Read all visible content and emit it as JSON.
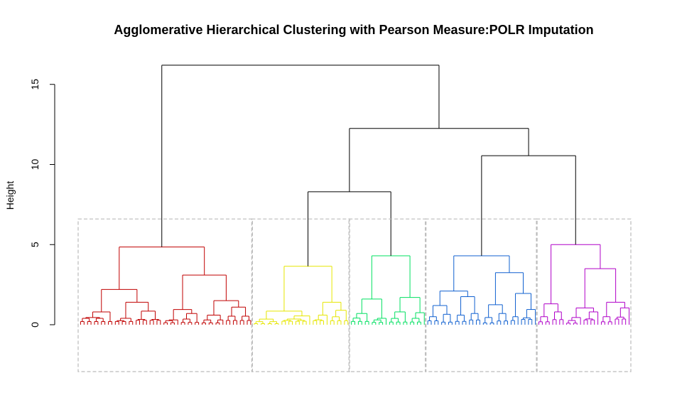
{
  "chart_data": {
    "type": "dendrogram",
    "title": "Agglomerative Hierarchical Clustering with Pearson Measure:POLR Imputation",
    "ylabel": "Height",
    "xlabel": "",
    "ylim": [
      0,
      16.2
    ],
    "y_ticks": [
      0,
      5,
      10,
      15
    ],
    "y_tick_labels": [
      "0",
      "5",
      "10",
      "15"
    ],
    "cut_height": 6.6,
    "grid": false,
    "clusters": [
      {
        "color": "#c00000",
        "tree": {
          "h": 4.85,
          "c": [
            {
              "h": 2.2,
              "c": [
                {
                  "h": 0.8,
                  "leaves": 10
                },
                {
                  "h": 1.4,
                  "c": [
                    {
                      "h": 0.4,
                      "leaves": 6
                    },
                    {
                      "h": 0.85,
                      "leaves": 8
                    }
                  ]
                }
              ]
            },
            {
              "h": 3.1,
              "c": [
                {
                  "h": 0.95,
                  "c": [
                    {
                      "h": 0.3,
                      "leaves": 5
                    },
                    {
                      "h": 0.7,
                      "leaves": 6
                    }
                  ]
                },
                {
                  "h": 1.5,
                  "c": [
                    {
                      "h": 0.6,
                      "leaves": 7
                    },
                    {
                      "h": 1.1,
                      "leaves": 8
                    }
                  ]
                }
              ]
            }
          ]
        }
      },
      {
        "color": "#e6e600",
        "tree": {
          "h": 3.65,
          "c": [
            {
              "h": 0.85,
              "c": [
                {
                  "h": 0.35,
                  "leaves": 8
                },
                {
                  "h": 0.55,
                  "leaves": 9
                }
              ]
            },
            {
              "h": 1.4,
              "c": [
                {
                  "h": 0.6,
                  "leaves": 5
                },
                {
                  "h": 0.9,
                  "leaves": 6
                }
              ]
            }
          ]
        }
      },
      {
        "color": "#00e060",
        "tree": {
          "h": 4.3,
          "c": [
            {
              "h": 1.6,
              "c": [
                {
                  "h": 0.7,
                  "leaves": 6
                },
                {
                  "h": 0.4,
                  "leaves": 5
                }
              ]
            },
            {
              "h": 1.7,
              "c": [
                {
                  "h": 0.8,
                  "leaves": 6
                },
                {
                  "h": 0.75,
                  "leaves": 5
                }
              ]
            }
          ]
        }
      },
      {
        "color": "#1060d0",
        "tree": {
          "h": 4.3,
          "c": [
            {
              "h": 2.1,
              "c": [
                {
                  "h": 1.2,
                  "c": [
                    {
                      "h": 0.5,
                      "leaves": 4
                    },
                    {
                      "h": 0.65,
                      "leaves": 4
                    }
                  ]
                },
                {
                  "h": 1.75,
                  "c": [
                    {
                      "h": 0.6,
                      "leaves": 4
                    },
                    {
                      "h": 0.7,
                      "leaves": 4
                    }
                  ]
                }
              ]
            },
            {
              "h": 3.25,
              "c": [
                {
                  "h": 1.25,
                  "c": [
                    {
                      "h": 0.45,
                      "leaves": 4
                    },
                    {
                      "h": 0.7,
                      "leaves": 4
                    }
                  ]
                },
                {
                  "h": 1.95,
                  "c": [
                    {
                      "h": 0.5,
                      "leaves": 3
                    },
                    {
                      "h": 0.95,
                      "leaves": 5
                    }
                  ]
                }
              ]
            }
          ]
        }
      },
      {
        "color": "#b000c8",
        "tree": {
          "h": 5.0,
          "c": [
            {
              "h": 1.3,
              "c": [
                {
                  "h": 0.5,
                  "leaves": 4
                },
                {
                  "h": 0.8,
                  "leaves": 4
                }
              ]
            },
            {
              "h": 3.5,
              "c": [
                {
                  "h": 1.05,
                  "c": [
                    {
                      "h": 0.45,
                      "leaves": 5
                    },
                    {
                      "h": 0.8,
                      "leaves": 5
                    }
                  ]
                },
                {
                  "h": 1.4,
                  "c": [
                    {
                      "h": 0.5,
                      "leaves": 4
                    },
                    {
                      "h": 1.05,
                      "leaves": 5
                    }
                  ]
                }
              ]
            }
          ]
        }
      }
    ],
    "upper_links": [
      {
        "h": 8.3,
        "join": [
          "cluster:1",
          "cluster:2"
        ]
      },
      {
        "h": 10.55,
        "join": [
          "cluster:3",
          "cluster:4"
        ]
      },
      {
        "h": 12.25,
        "join": [
          "node:0",
          "node:1"
        ]
      },
      {
        "h": 16.2,
        "join": [
          "cluster:0",
          "node:2"
        ]
      }
    ],
    "upper_color": "#000000",
    "box_color": "#bbbbbb"
  }
}
